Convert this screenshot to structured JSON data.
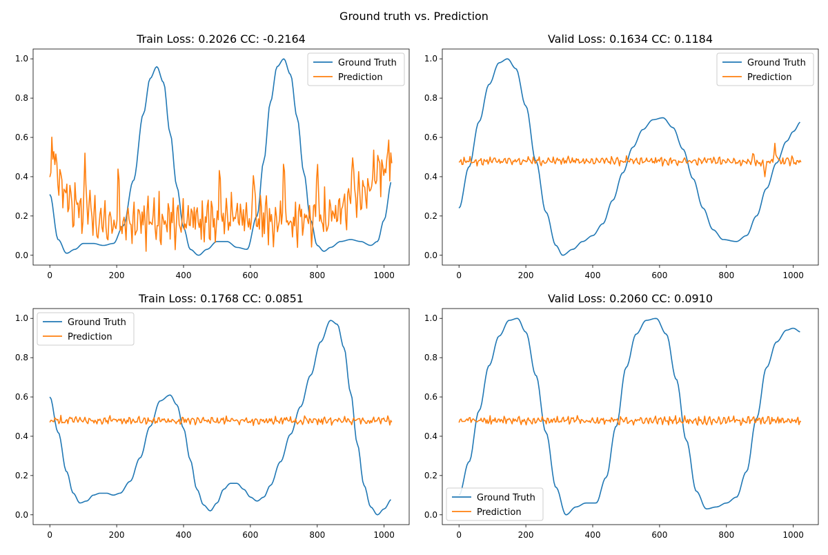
{
  "figure": {
    "suptitle": "Ground truth vs. Prediction"
  },
  "colors": {
    "ground_truth": "#1f77b4",
    "prediction": "#ff7f0e"
  },
  "chart_data": [
    {
      "type": "line",
      "title": "Train Loss: 0.2026 CC: -0.2164",
      "xlim": [
        -50,
        1075
      ],
      "ylim": [
        -0.05,
        1.05
      ],
      "xticks": [
        0,
        200,
        400,
        600,
        800,
        1000
      ],
      "yticks": [
        0.0,
        0.2,
        0.4,
        0.6,
        0.8,
        1.0
      ],
      "legend": "upper-right",
      "series": [
        {
          "name": "Ground Truth",
          "color": "#1f77b4",
          "kind": "smooth",
          "x": [
            0,
            25,
            50,
            75,
            100,
            130,
            160,
            190,
            220,
            250,
            280,
            300,
            320,
            340,
            360,
            380,
            400,
            420,
            445,
            470,
            500,
            530,
            560,
            590,
            620,
            640,
            660,
            680,
            700,
            720,
            740,
            760,
            780,
            800,
            820,
            840,
            870,
            900,
            930,
            960,
            980,
            1000,
            1023
          ],
          "y": [
            0.31,
            0.08,
            0.01,
            0.03,
            0.06,
            0.06,
            0.05,
            0.06,
            0.15,
            0.38,
            0.72,
            0.9,
            0.96,
            0.88,
            0.62,
            0.35,
            0.14,
            0.03,
            0.0,
            0.03,
            0.07,
            0.07,
            0.04,
            0.03,
            0.2,
            0.48,
            0.78,
            0.96,
            1.0,
            0.92,
            0.7,
            0.42,
            0.18,
            0.05,
            0.02,
            0.04,
            0.07,
            0.08,
            0.07,
            0.05,
            0.07,
            0.18,
            0.38
          ]
        },
        {
          "name": "Prediction",
          "color": "#ff7f0e",
          "kind": "noisy",
          "x": [
            0,
            10,
            20,
            35,
            50,
            70,
            90,
            110,
            140,
            200,
            260,
            320,
            380,
            440,
            500,
            560,
            620,
            680,
            740,
            800,
            860,
            900,
            940,
            980,
            1023
          ],
          "y": [
            0.43,
            0.55,
            0.42,
            0.35,
            0.3,
            0.26,
            0.22,
            0.2,
            0.17,
            0.17,
            0.17,
            0.18,
            0.18,
            0.17,
            0.18,
            0.18,
            0.18,
            0.18,
            0.17,
            0.18,
            0.2,
            0.25,
            0.33,
            0.42,
            0.5
          ],
          "amp": 0.12,
          "spikes": [
            [
              105,
              0.52
            ],
            [
              205,
              0.52
            ],
            [
              508,
              0.52
            ],
            [
              610,
              0.5
            ],
            [
              700,
              0.54
            ],
            [
              800,
              0.54
            ],
            [
              905,
              0.57
            ],
            [
              1010,
              0.53
            ]
          ]
        }
      ]
    },
    {
      "type": "line",
      "title": "Valid Loss: 0.1634 CC: 0.1184",
      "xlim": [
        -50,
        1075
      ],
      "ylim": [
        -0.05,
        1.05
      ],
      "xticks": [
        0,
        200,
        400,
        600,
        800,
        1000
      ],
      "yticks": [
        0.0,
        0.2,
        0.4,
        0.6,
        0.8,
        1.0
      ],
      "legend": "upper-right",
      "series": [
        {
          "name": "Ground Truth",
          "color": "#1f77b4",
          "kind": "smooth",
          "x": [
            0,
            30,
            60,
            90,
            120,
            145,
            170,
            200,
            230,
            260,
            290,
            310,
            340,
            370,
            400,
            430,
            460,
            490,
            520,
            550,
            580,
            610,
            640,
            670,
            700,
            730,
            760,
            790,
            830,
            860,
            890,
            920,
            950,
            980,
            1000,
            1023
          ],
          "y": [
            0.24,
            0.45,
            0.68,
            0.87,
            0.98,
            1.0,
            0.95,
            0.76,
            0.48,
            0.22,
            0.05,
            0.0,
            0.03,
            0.07,
            0.1,
            0.16,
            0.28,
            0.42,
            0.55,
            0.64,
            0.69,
            0.7,
            0.65,
            0.54,
            0.39,
            0.24,
            0.13,
            0.08,
            0.07,
            0.1,
            0.2,
            0.34,
            0.47,
            0.58,
            0.63,
            0.68
          ]
        },
        {
          "name": "Prediction",
          "color": "#ff7f0e",
          "kind": "noisy",
          "x": [
            0,
            200,
            400,
            600,
            800,
            850,
            900,
            950,
            1023
          ],
          "y": [
            0.48,
            0.48,
            0.48,
            0.48,
            0.48,
            0.48,
            0.47,
            0.48,
            0.48
          ],
          "amp": 0.02,
          "spikes": [
            [
              880,
              0.53
            ],
            [
              915,
              0.4
            ],
            [
              945,
              0.57
            ]
          ]
        }
      ]
    },
    {
      "type": "line",
      "title": "Train Loss: 0.1768 CC: 0.0851",
      "xlim": [
        -50,
        1075
      ],
      "ylim": [
        -0.05,
        1.05
      ],
      "xticks": [
        0,
        200,
        400,
        600,
        800,
        1000
      ],
      "yticks": [
        0.0,
        0.2,
        0.4,
        0.6,
        0.8,
        1.0
      ],
      "legend": "upper-left",
      "series": [
        {
          "name": "Ground Truth",
          "color": "#1f77b4",
          "kind": "smooth",
          "x": [
            0,
            25,
            50,
            70,
            90,
            110,
            130,
            150,
            170,
            190,
            210,
            240,
            270,
            300,
            330,
            360,
            380,
            400,
            420,
            440,
            460,
            480,
            500,
            520,
            540,
            560,
            580,
            600,
            620,
            640,
            660,
            690,
            720,
            750,
            780,
            810,
            840,
            860,
            880,
            900,
            920,
            940,
            960,
            980,
            1000,
            1023
          ],
          "y": [
            0.6,
            0.42,
            0.22,
            0.11,
            0.06,
            0.07,
            0.1,
            0.11,
            0.11,
            0.1,
            0.11,
            0.17,
            0.29,
            0.45,
            0.58,
            0.61,
            0.56,
            0.44,
            0.28,
            0.13,
            0.05,
            0.02,
            0.06,
            0.13,
            0.16,
            0.16,
            0.13,
            0.09,
            0.07,
            0.09,
            0.15,
            0.27,
            0.41,
            0.55,
            0.71,
            0.88,
            0.99,
            0.97,
            0.85,
            0.62,
            0.36,
            0.15,
            0.04,
            0.0,
            0.03,
            0.08
          ]
        },
        {
          "name": "Prediction",
          "color": "#ff7f0e",
          "kind": "noisy",
          "x": [
            0,
            200,
            400,
            600,
            800,
            1023
          ],
          "y": [
            0.48,
            0.48,
            0.48,
            0.48,
            0.48,
            0.48
          ],
          "amp": 0.02,
          "spikes": []
        }
      ]
    },
    {
      "type": "line",
      "title": "Valid Loss: 0.2060 CC: 0.0910",
      "xlim": [
        -50,
        1075
      ],
      "ylim": [
        -0.05,
        1.05
      ],
      "xticks": [
        0,
        200,
        400,
        600,
        800,
        1000
      ],
      "yticks": [
        0.0,
        0.2,
        0.4,
        0.6,
        0.8,
        1.0
      ],
      "legend": "lower-left",
      "series": [
        {
          "name": "Ground Truth",
          "color": "#1f77b4",
          "kind": "smooth",
          "x": [
            0,
            30,
            60,
            90,
            120,
            150,
            175,
            200,
            230,
            260,
            290,
            320,
            350,
            380,
            410,
            440,
            470,
            500,
            530,
            560,
            590,
            620,
            650,
            680,
            710,
            740,
            770,
            800,
            830,
            860,
            890,
            920,
            950,
            980,
            1000,
            1023
          ],
          "y": [
            0.1,
            0.27,
            0.53,
            0.76,
            0.91,
            0.99,
            1.0,
            0.93,
            0.71,
            0.42,
            0.14,
            0.0,
            0.04,
            0.06,
            0.06,
            0.19,
            0.45,
            0.75,
            0.92,
            0.99,
            1.0,
            0.92,
            0.69,
            0.38,
            0.12,
            0.03,
            0.04,
            0.06,
            0.09,
            0.22,
            0.49,
            0.75,
            0.88,
            0.94,
            0.95,
            0.93
          ]
        },
        {
          "name": "Prediction",
          "color": "#ff7f0e",
          "kind": "noisy",
          "x": [
            0,
            200,
            400,
            600,
            800,
            1023
          ],
          "y": [
            0.48,
            0.48,
            0.48,
            0.48,
            0.48,
            0.48
          ],
          "amp": 0.02,
          "spikes": []
        }
      ]
    }
  ]
}
